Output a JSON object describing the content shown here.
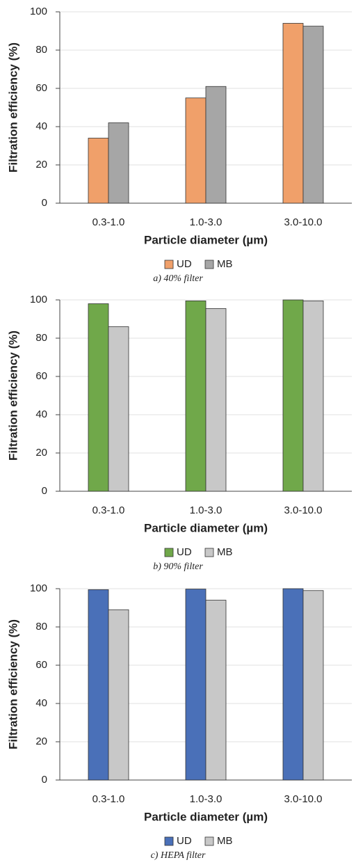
{
  "chart_data": [
    {
      "type": "bar",
      "ylabel": "Filtration efficiency (%)",
      "xlabel": "Particle diameter (µm)",
      "caption": "a)  40% filter",
      "categories": [
        "0.3-1.0",
        "1.0-3.0",
        "3.0-10.0"
      ],
      "series": [
        {
          "name": "UD",
          "color": "#f0a06a",
          "values": [
            34,
            55,
            94
          ]
        },
        {
          "name": "MB",
          "color": "#a6a6a6",
          "values": [
            42,
            61,
            92.5
          ]
        }
      ],
      "ylim": [
        0,
        100
      ],
      "yticks": [
        0,
        20,
        40,
        60,
        80,
        100
      ],
      "grid": true
    },
    {
      "type": "bar",
      "ylabel": "Filtration efficiency (%)",
      "xlabel": "Particle diameter (µm)",
      "caption": "b)  90% filter",
      "categories": [
        "0.3-1.0",
        "1.0-3.0",
        "3.0-10.0"
      ],
      "series": [
        {
          "name": "UD",
          "color": "#70a84a",
          "values": [
            98,
            99.5,
            100
          ]
        },
        {
          "name": "MB",
          "color": "#c8c8c8",
          "values": [
            86,
            95.5,
            99.5
          ]
        }
      ],
      "ylim": [
        0,
        100
      ],
      "yticks": [
        0,
        20,
        40,
        60,
        80,
        100
      ],
      "grid": true
    },
    {
      "type": "bar",
      "ylabel": "Filtration efficiency (%)",
      "xlabel": "Particle diameter (µm)",
      "caption": "c)  HEPA  filter",
      "categories": [
        "0.3-1.0",
        "1.0-3.0",
        "3.0-10.0"
      ],
      "series": [
        {
          "name": "UD",
          "color": "#4a70b8",
          "values": [
            99.5,
            99.8,
            100
          ]
        },
        {
          "name": "MB",
          "color": "#c8c8c8",
          "values": [
            89,
            94,
            99
          ]
        }
      ],
      "ylim": [
        0,
        100
      ],
      "yticks": [
        0,
        20,
        40,
        60,
        80,
        100
      ],
      "grid": true
    }
  ]
}
